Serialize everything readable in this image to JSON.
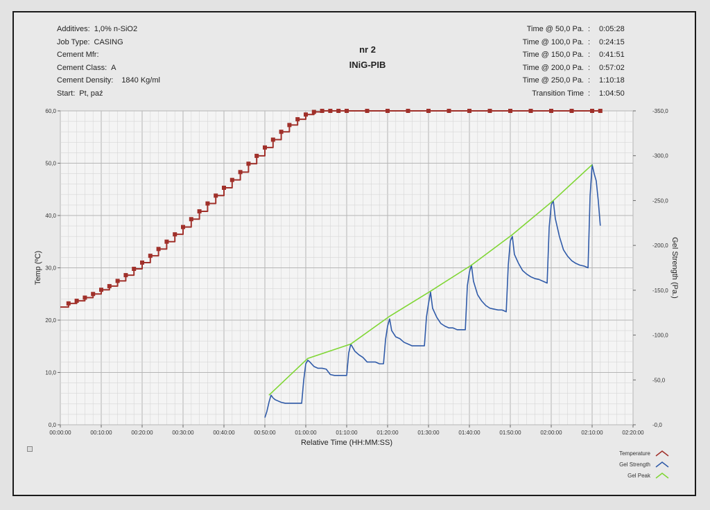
{
  "header": {
    "left": [
      {
        "label": "Additives:",
        "value": "1,0% n-SiO2"
      },
      {
        "label": "Job Type:",
        "value": "CASING"
      },
      {
        "label": "Cement Mfr:",
        "value": ""
      },
      {
        "label": "Cement Class:",
        "value": "A"
      },
      {
        "label": "Cement Density:",
        "value": "1840 Kg/ml"
      },
      {
        "label": "Start:",
        "value": "Pt, paź"
      }
    ],
    "title": "nr 2",
    "subtitle": "INiG-PIB",
    "right": [
      {
        "label": "Time @ 50,0 Pa.",
        "value": "0:05:28"
      },
      {
        "label": "Time @ 100,0 Pa.",
        "value": "0:24:15"
      },
      {
        "label": "Time @ 150,0 Pa.",
        "value": "0:41:51"
      },
      {
        "label": "Time @ 200,0 Pa.",
        "value": "0:57:02"
      },
      {
        "label": "Time @ 250,0 Pa.",
        "value": "1:10:18"
      },
      {
        "label": "Transition Time",
        "value": "1:04:50"
      }
    ]
  },
  "chart_data": {
    "type": "line",
    "xlabel": "Relative Time (HH:MM:SS)",
    "ylabel_left": "Temp (ºC)",
    "ylabel_right": "Gel Strength (Pa.)",
    "x_unit": "minutes",
    "xlim": [
      0,
      140
    ],
    "ylim_left": [
      0,
      60
    ],
    "ylim_right": [
      0,
      350
    ],
    "x_ticks": [
      "00:00:00",
      "00:10:00",
      "00:20:00",
      "00:30:00",
      "00:40:00",
      "00:50:00",
      "01:00:00",
      "01:10:00",
      "01:20:00",
      "01:30:00",
      "01:40:00",
      "01:50:00",
      "02:00:00",
      "02:10:00",
      "02:20:00"
    ],
    "y_ticks_left": [
      "0,0",
      "10,0",
      "20,0",
      "30,0",
      "40,0",
      "50,0",
      "60,0"
    ],
    "y_ticks_right": [
      "-0,0",
      "-50,0",
      "-100,0",
      "-150,0",
      "-200,0",
      "-250,0",
      "-300,0",
      "-350,0"
    ],
    "grid": true,
    "legend_position": "bottom-right",
    "series": [
      {
        "name": "Temperature",
        "color": "#a0302a",
        "axis": "left",
        "x": [
          0,
          2,
          4,
          6,
          8,
          10,
          12,
          14,
          16,
          18,
          20,
          22,
          24,
          26,
          28,
          30,
          32,
          34,
          36,
          38,
          40,
          42,
          44,
          46,
          48,
          50,
          52,
          54,
          56,
          58,
          60,
          62,
          64,
          66,
          68,
          70,
          75,
          80,
          85,
          90,
          95,
          100,
          105,
          110,
          115,
          120,
          125,
          130,
          132
        ],
        "y": [
          22.5,
          23.2,
          23.7,
          24.3,
          25.0,
          25.8,
          26.5,
          27.5,
          28.6,
          29.8,
          31.0,
          32.3,
          33.6,
          35.0,
          36.4,
          37.8,
          39.3,
          40.8,
          42.3,
          43.8,
          45.3,
          46.8,
          48.3,
          49.9,
          51.4,
          53.0,
          54.5,
          56.0,
          57.3,
          58.4,
          59.3,
          59.8,
          60.0,
          60.0,
          60.0,
          60.0,
          60.0,
          60.0,
          60.0,
          60.0,
          60.0,
          60.0,
          60.0,
          60.0,
          60.0,
          60.0,
          60.0,
          60.0,
          60.0
        ]
      },
      {
        "name": "Gel Strength",
        "color": "#2f5aa8",
        "axis": "right",
        "x": [
          50.0,
          50.5,
          51.0,
          51.5,
          52.0,
          52.5,
          53.0,
          54.0,
          55.0,
          56.0,
          57.0,
          58.0,
          59.0,
          59.5,
          60.0,
          60.5,
          61.0,
          62.0,
          63.0,
          64.0,
          65.0,
          66.0,
          67.0,
          68.0,
          69.0,
          70.0,
          70.5,
          71.0,
          71.5,
          72.0,
          73.0,
          74.0,
          75.0,
          76.0,
          77.0,
          78.0,
          79.0,
          79.5,
          80.0,
          80.5,
          81.0,
          82.0,
          83.0,
          84.0,
          85.0,
          86.0,
          87.0,
          88.0,
          89.0,
          89.5,
          90.0,
          90.5,
          91.0,
          92.0,
          93.0,
          94.0,
          95.0,
          96.0,
          97.0,
          98.0,
          99.0,
          99.5,
          100.0,
          100.5,
          101.0,
          102.0,
          103.0,
          104.0,
          105.0,
          106.0,
          107.0,
          108.0,
          109.0,
          109.5,
          110.0,
          110.5,
          111.0,
          112.0,
          113.0,
          114.0,
          115.0,
          116.0,
          117.0,
          118.0,
          119.0,
          119.5,
          120.0,
          120.5,
          121.0,
          122.0,
          123.0,
          124.0,
          125.0,
          126.0,
          127.0,
          128.0,
          129.0,
          129.5,
          130.0,
          130.5,
          131.0,
          131.5,
          132.0
        ],
        "y": [
          8,
          15,
          25,
          33,
          30,
          28,
          27,
          25,
          24,
          24,
          24,
          24,
          24,
          50,
          68,
          72,
          70,
          65,
          63,
          63,
          62,
          56,
          55,
          55,
          55,
          55,
          80,
          90,
          86,
          82,
          78,
          75,
          70,
          70,
          70,
          68,
          68,
          95,
          110,
          118,
          105,
          98,
          96,
          92,
          90,
          88,
          88,
          88,
          88,
          120,
          135,
          148,
          130,
          120,
          113,
          110,
          108,
          108,
          106,
          106,
          106,
          155,
          170,
          178,
          160,
          145,
          138,
          133,
          130,
          129,
          128,
          128,
          126,
          178,
          205,
          210,
          190,
          180,
          172,
          168,
          165,
          163,
          162,
          160,
          158,
          220,
          245,
          250,
          230,
          210,
          195,
          188,
          183,
          180,
          178,
          177,
          175,
          255,
          290,
          280,
          272,
          250,
          222
        ]
      },
      {
        "name": "Gel Peak",
        "color": "#7fd633",
        "axis": "right",
        "x": [
          51,
          60.5,
          71,
          80.5,
          90.5,
          100.5,
          110.5,
          120.5,
          130
        ],
        "y": [
          33,
          74,
          90,
          121,
          149,
          178,
          212,
          250,
          290
        ]
      }
    ]
  }
}
